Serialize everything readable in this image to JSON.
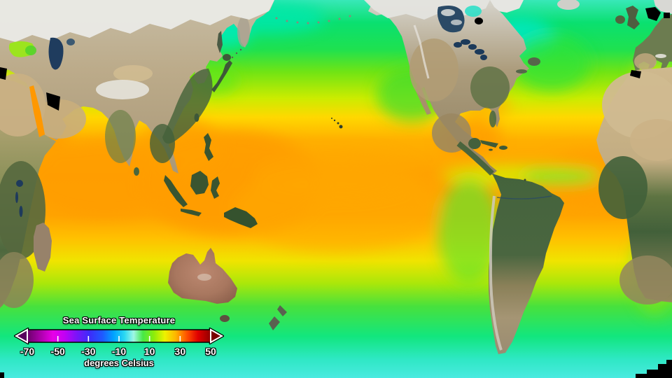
{
  "window": {
    "description": "Satellite world map visualization of sea surface temperature, Pacific-centered"
  },
  "legend": {
    "title": "Sea Surface Temperature",
    "unit_label": "degrees Celsius",
    "ticks": [
      "-70",
      "-50",
      "-30",
      "-10",
      "10",
      "30",
      "50"
    ],
    "tick_values": [
      -70,
      -50,
      -30,
      -10,
      10,
      30,
      50
    ],
    "inner_tick_values": [
      -50,
      -30,
      -10,
      10,
      30
    ],
    "range_min": -70,
    "range_max": 50,
    "gradient_stops": [
      {
        "t": 0.0,
        "color": "#6B006B"
      },
      {
        "t": 0.06,
        "color": "#A100A1"
      },
      {
        "t": 0.14,
        "color": "#E800E8"
      },
      {
        "t": 0.2,
        "color": "#C400F4"
      },
      {
        "t": 0.27,
        "color": "#7A14F8"
      },
      {
        "t": 0.34,
        "color": "#3C2CFA"
      },
      {
        "t": 0.41,
        "color": "#1E5AFF"
      },
      {
        "t": 0.47,
        "color": "#00A2FF"
      },
      {
        "t": 0.53,
        "color": "#2AD8F2"
      },
      {
        "t": 0.58,
        "color": "#9FF7E4"
      },
      {
        "t": 0.63,
        "color": "#47E847"
      },
      {
        "t": 0.69,
        "color": "#8CEC0A"
      },
      {
        "t": 0.75,
        "color": "#EEF200"
      },
      {
        "t": 0.81,
        "color": "#FFB400"
      },
      {
        "t": 0.87,
        "color": "#FF5000"
      },
      {
        "t": 0.93,
        "color": "#E00000"
      },
      {
        "t": 1.0,
        "color": "#8F0000"
      }
    ],
    "arrow_left_color": "#58005E",
    "arrow_right_color": "#7A0000",
    "text_color": "#FFFFFF",
    "tick_mark_color": "#FFFFFF"
  },
  "map_palette": {
    "ocean_coldest_cyan": "#40E8E0",
    "ocean_polar_green": "#1EE150",
    "ocean_temperate_yellow": "#E8EC00",
    "ocean_tropical_orange": "#FFA200",
    "equatorial_upwelling_green": "#7CE428",
    "land_snow": "#EAEAE6",
    "land_desert": "#C9AE7E",
    "land_forest": "#42603A",
    "land_outback": "#A8775F",
    "inland_water": "#1F3C5E",
    "no_data_black": "#000000"
  }
}
